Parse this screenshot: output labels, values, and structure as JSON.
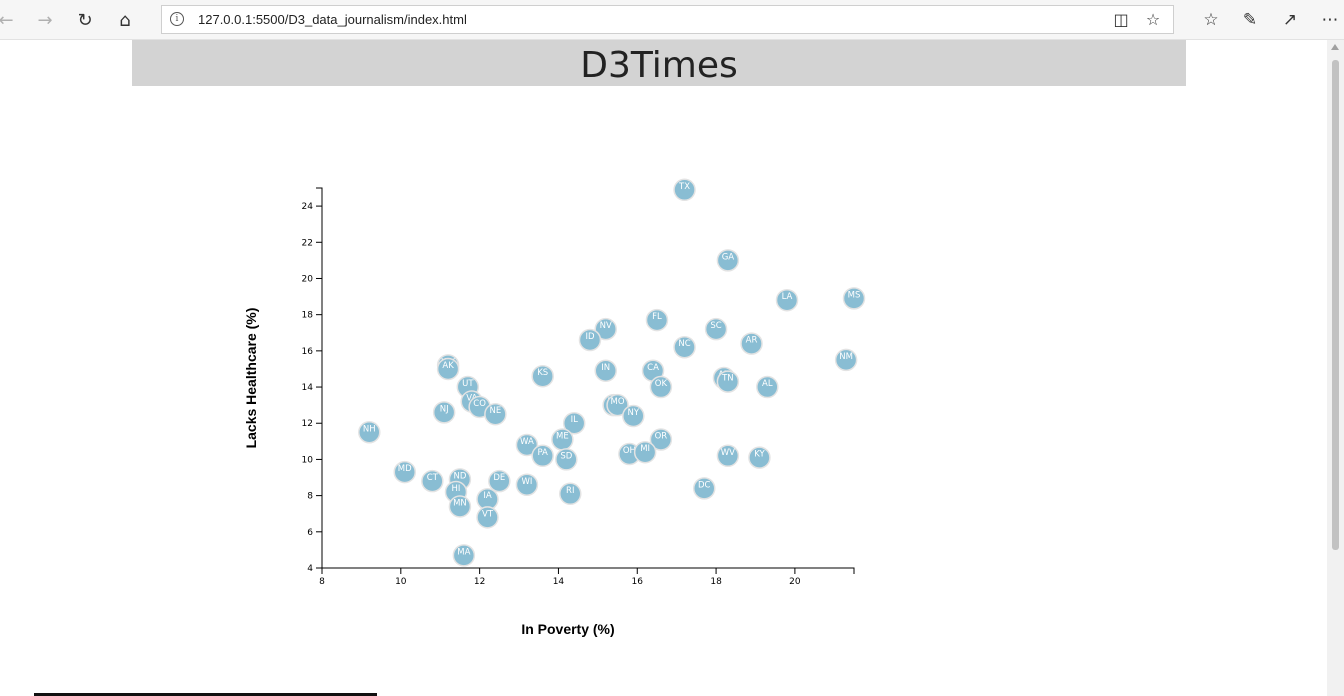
{
  "browser": {
    "url": "127.0.0.1:5500/D3_data_journalism/index.html",
    "icons": [
      "back-arrow-icon",
      "forward-arrow-icon",
      "refresh-icon",
      "home-icon",
      "info-icon",
      "reading-view-icon",
      "star-icon",
      "favorites-icon",
      "pen-icon",
      "share-icon",
      "more-icon"
    ]
  },
  "header": {
    "title": "D3Times"
  },
  "chart_data": {
    "type": "scatter",
    "xlabel": "In Poverty (%)",
    "ylabel": "Lacks Healthcare (%)",
    "xlim": [
      8,
      21.5
    ],
    "ylim": [
      4,
      25
    ],
    "xticks": [
      8,
      10,
      12,
      14,
      16,
      18,
      20
    ],
    "yticks": [
      4,
      6,
      8,
      10,
      12,
      14,
      16,
      18,
      20,
      22,
      24
    ],
    "grid": false,
    "marker_color": "#89bdd3",
    "points": [
      {
        "abbr": "TX",
        "x": 17.2,
        "y": 24.9
      },
      {
        "abbr": "GA",
        "x": 18.3,
        "y": 21.0
      },
      {
        "abbr": "LA",
        "x": 19.8,
        "y": 18.8
      },
      {
        "abbr": "MS",
        "x": 21.5,
        "y": 18.9
      },
      {
        "abbr": "FL",
        "x": 16.5,
        "y": 17.7
      },
      {
        "abbr": "SC",
        "x": 18.0,
        "y": 17.2
      },
      {
        "abbr": "NV",
        "x": 15.2,
        "y": 17.2
      },
      {
        "abbr": "ID",
        "x": 14.8,
        "y": 16.6
      },
      {
        "abbr": "NC",
        "x": 17.2,
        "y": 16.2
      },
      {
        "abbr": "AR",
        "x": 18.9,
        "y": 16.4
      },
      {
        "abbr": "NM",
        "x": 21.3,
        "y": 15.5
      },
      {
        "abbr": "WY",
        "x": 11.2,
        "y": 15.2
      },
      {
        "abbr": "AK",
        "x": 11.2,
        "y": 15.0
      },
      {
        "abbr": "IN",
        "x": 15.2,
        "y": 14.9
      },
      {
        "abbr": "CA",
        "x": 16.4,
        "y": 14.9
      },
      {
        "abbr": "KS",
        "x": 13.6,
        "y": 14.6
      },
      {
        "abbr": "AZ",
        "x": 18.2,
        "y": 14.5
      },
      {
        "abbr": "TN",
        "x": 18.3,
        "y": 14.3
      },
      {
        "abbr": "OK",
        "x": 16.6,
        "y": 14.0
      },
      {
        "abbr": "AL",
        "x": 19.3,
        "y": 14.0
      },
      {
        "abbr": "UT",
        "x": 11.7,
        "y": 14.0
      },
      {
        "abbr": "VA",
        "x": 11.8,
        "y": 13.2
      },
      {
        "abbr": "CO",
        "x": 12.0,
        "y": 12.9
      },
      {
        "abbr": "MT",
        "x": 15.4,
        "y": 13.0
      },
      {
        "abbr": "MO",
        "x": 15.5,
        "y": 13.0
      },
      {
        "abbr": "NJ",
        "x": 11.1,
        "y": 12.6
      },
      {
        "abbr": "NE",
        "x": 12.4,
        "y": 12.5
      },
      {
        "abbr": "NY",
        "x": 15.9,
        "y": 12.4
      },
      {
        "abbr": "IL",
        "x": 14.4,
        "y": 12.0
      },
      {
        "abbr": "NH",
        "x": 9.2,
        "y": 11.5
      },
      {
        "abbr": "ME",
        "x": 14.1,
        "y": 11.1
      },
      {
        "abbr": "OR",
        "x": 16.6,
        "y": 11.1
      },
      {
        "abbr": "WA",
        "x": 13.2,
        "y": 10.8
      },
      {
        "abbr": "PA",
        "x": 13.6,
        "y": 10.2
      },
      {
        "abbr": "OH",
        "x": 15.8,
        "y": 10.3
      },
      {
        "abbr": "MI",
        "x": 16.2,
        "y": 10.4
      },
      {
        "abbr": "SD",
        "x": 14.2,
        "y": 10.0
      },
      {
        "abbr": "WV",
        "x": 18.3,
        "y": 10.2
      },
      {
        "abbr": "KY",
        "x": 19.1,
        "y": 10.1
      },
      {
        "abbr": "MD",
        "x": 10.1,
        "y": 9.3
      },
      {
        "abbr": "CT",
        "x": 10.8,
        "y": 8.8
      },
      {
        "abbr": "ND",
        "x": 11.5,
        "y": 8.9
      },
      {
        "abbr": "DE",
        "x": 12.5,
        "y": 8.8
      },
      {
        "abbr": "WI",
        "x": 13.2,
        "y": 8.6
      },
      {
        "abbr": "HI",
        "x": 11.4,
        "y": 8.2
      },
      {
        "abbr": "DC",
        "x": 17.7,
        "y": 8.4
      },
      {
        "abbr": "RI",
        "x": 14.3,
        "y": 8.1
      },
      {
        "abbr": "IA",
        "x": 12.2,
        "y": 7.8
      },
      {
        "abbr": "MN",
        "x": 11.5,
        "y": 7.4
      },
      {
        "abbr": "VT",
        "x": 12.2,
        "y": 6.8
      },
      {
        "abbr": "MA",
        "x": 11.6,
        "y": 4.7
      }
    ]
  }
}
